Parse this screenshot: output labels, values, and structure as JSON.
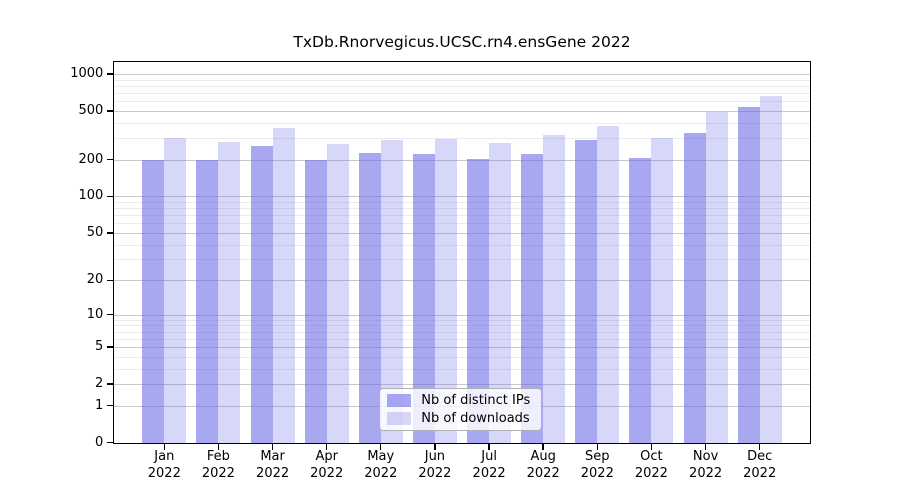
{
  "title": "TxDb.Rnorvegicus.UCSC.rn4.ensGene 2022",
  "chart_data": {
    "type": "bar",
    "title": "TxDb.Rnorvegicus.UCSC.rn4.ensGene 2022",
    "categories": [
      "Jan",
      "Feb",
      "Mar",
      "Apr",
      "May",
      "Jun",
      "Jul",
      "Aug",
      "Sep",
      "Oct",
      "Nov",
      "Dec"
    ],
    "category_year": "2022",
    "series": [
      {
        "name": "Nb of distinct IPs",
        "values": [
          198,
          201,
          259,
          199,
          228,
          223,
          203,
          223,
          291,
          207,
          334,
          540
        ]
      },
      {
        "name": "Nb of downloads",
        "values": [
          300,
          281,
          365,
          269,
          291,
          297,
          273,
          322,
          381,
          300,
          492,
          665
        ]
      }
    ],
    "y_axis": {
      "scale": "log10(1+x)",
      "major_ticks": [
        0,
        1,
        2,
        5,
        10,
        20,
        50,
        100,
        200,
        500,
        1000
      ],
      "minor_ticks": [
        3,
        4,
        6,
        7,
        8,
        9,
        30,
        40,
        60,
        70,
        80,
        90,
        300,
        400,
        600,
        700,
        800,
        900
      ],
      "max": 1250
    },
    "grid": true,
    "legend_position": "bottom-center"
  },
  "colors": {
    "bar_base": "#6666e6",
    "bar_alpha_dark": 0.57,
    "bar_alpha_light": 0.26,
    "grid_major": "#c9c9c9",
    "grid_minor": "#ebebeb",
    "axis": "#000000",
    "legend_border": "#b0b0b0",
    "legend_bg": "rgba(255,255,255,0.8)"
  }
}
